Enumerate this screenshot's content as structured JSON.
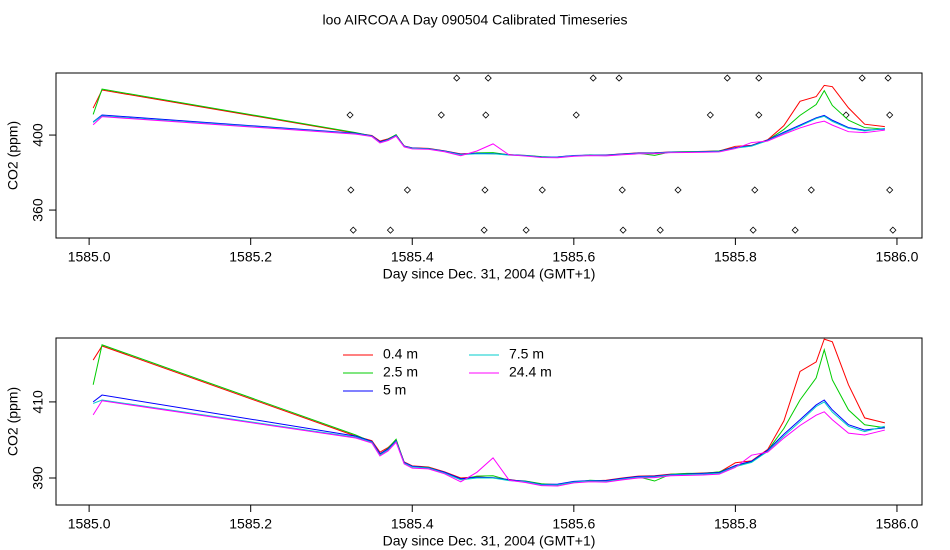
{
  "title": "loo AIRCOA A  Day 090504  Calibrated Timeseries",
  "chart_data": [
    {
      "type": "line",
      "xlabel": "Day since Dec. 31, 2004 (GMT+1)",
      "ylabel": "CO2 (ppm)",
      "xlim": [
        1584.959,
        1586.031
      ],
      "ylim": [
        345.1,
        433.1
      ],
      "xticks": [
        {
          "value": 1585,
          "label": "1585.0"
        },
        1585.2,
        1585.4,
        1585.6,
        1585.8,
        {
          "value": 1586,
          "label": "1586.0"
        }
      ],
      "yticks": [
        360,
        400
      ],
      "x": [
        1585.005,
        1585.016,
        1585.33,
        1585.35,
        1585.36,
        1585.37,
        1585.38,
        1585.39,
        1585.4,
        1585.42,
        1585.44,
        1585.46,
        1585.48,
        1585.5,
        1585.52,
        1585.54,
        1585.56,
        1585.58,
        1585.6,
        1585.62,
        1585.64,
        1585.66,
        1585.68,
        1585.7,
        1585.72,
        1585.74,
        1585.76,
        1585.78,
        1585.8,
        1585.82,
        1585.84,
        1585.86,
        1585.88,
        1585.9,
        1585.91,
        1585.92,
        1585.94,
        1585.96,
        1585.985
      ],
      "series": [
        {
          "color": "#ff0000",
          "values": [
            414.4,
            424,
            401,
            399.8,
            396.8,
            398,
            400,
            394.2,
            393.2,
            392.9,
            391.6,
            390,
            390.3,
            390,
            389.6,
            389,
            388.4,
            388.3,
            389,
            389.2,
            389.4,
            390,
            390.5,
            390.6,
            391,
            391.1,
            391.3,
            391.5,
            394,
            394.5,
            397.5,
            405,
            418,
            420.5,
            426.5,
            425.8,
            414.5,
            405.8,
            404.5
          ]
        },
        {
          "color": "#00cd00",
          "values": [
            411,
            424.5,
            401.3,
            399.5,
            396.2,
            397.8,
            400.2,
            394,
            393,
            392.8,
            391.4,
            389.6,
            390.5,
            390.6,
            389.4,
            389.2,
            388.5,
            388.2,
            388.8,
            389.4,
            389.2,
            389.8,
            390.3,
            389.2,
            391,
            391.2,
            391.2,
            391.6,
            393.2,
            394.2,
            397.2,
            403,
            410.5,
            416.3,
            423.7,
            415.8,
            407.9,
            404,
            403.2
          ]
        },
        {
          "color": "#0000ff",
          "values": [
            407,
            410.7,
            401,
            399.6,
            396.4,
            397.6,
            399.8,
            394.1,
            393.1,
            392.7,
            391.5,
            389.8,
            390.2,
            390.1,
            389.5,
            389.1,
            388.3,
            388.4,
            389.1,
            389.3,
            389.3,
            389.9,
            390.4,
            390.5,
            390.9,
            391,
            391.2,
            391.4,
            393.3,
            394.4,
            397.3,
            401.5,
            405.3,
            409.2,
            410.5,
            407.9,
            404,
            402.6,
            403.2
          ]
        },
        {
          "color": "#00cdcd",
          "values": [
            406.8,
            410.2,
            400.7,
            399.4,
            396,
            397.3,
            399.6,
            393.9,
            392.9,
            392.6,
            391.3,
            389.5,
            390,
            390,
            389.3,
            389,
            388.2,
            388.2,
            388.9,
            389.2,
            389.1,
            389.7,
            390.2,
            390.3,
            390.8,
            390.9,
            391,
            391.2,
            393,
            394.1,
            397,
            401,
            404.8,
            408.8,
            410,
            407.3,
            403.6,
            402.2,
            403.6
          ]
        },
        {
          "color": "#ff00ff",
          "values": [
            405.5,
            409.8,
            400.5,
            399.2,
            395.8,
            397.1,
            399.4,
            393.7,
            392.6,
            392.4,
            391.1,
            389,
            391.5,
            395.3,
            389.4,
            388.8,
            388,
            387.9,
            388.7,
            389,
            388.9,
            389.5,
            390,
            390.1,
            390.6,
            390.7,
            390.8,
            391,
            392.8,
            396,
            396.8,
            400.5,
            403.8,
            406.5,
            407.4,
            405.3,
            401.8,
            401.3,
            402.6
          ]
        }
      ],
      "points": {
        "x": [
          1585.455,
          1585.494,
          1585.624,
          1585.656,
          1585.79,
          1585.829,
          1585.957,
          1585.989,
          1585.323,
          1585.436,
          1585.491,
          1585.603,
          1585.769,
          1585.829,
          1585.937,
          1585.991,
          1585.324,
          1585.394,
          1585.49,
          1585.561,
          1585.66,
          1585.729,
          1585.824,
          1585.894,
          1585.991,
          1585.327,
          1585.373,
          1585.489,
          1585.541,
          1585.661,
          1585.707,
          1585.822,
          1585.874,
          1585.995
        ],
        "y": [
          430.4,
          430.4,
          430.4,
          430.4,
          430.4,
          430.4,
          430.4,
          430.4,
          410.7,
          410.7,
          410.7,
          410.7,
          410.7,
          410.7,
          410.7,
          410.7,
          370.7,
          370.7,
          370.7,
          370.7,
          370.7,
          370.7,
          370.7,
          370.7,
          370.7,
          349.3,
          349.3,
          349.3,
          349.3,
          349.3,
          349.3,
          349.3,
          349.3,
          349.3
        ]
      }
    },
    {
      "type": "line",
      "xlabel": "Day since Dec. 31, 2004 (GMT+1)",
      "ylabel": "CO2 (ppm)",
      "xlim": [
        1584.959,
        1586.031
      ],
      "ylim": [
        382.9,
        426.8
      ],
      "xticks": [
        {
          "value": 1585,
          "label": "1585.0"
        },
        1585.2,
        1585.4,
        1585.6,
        1585.8,
        {
          "value": 1586,
          "label": "1586.0"
        }
      ],
      "yticks": [
        390,
        410
      ],
      "x": [
        1585.005,
        1585.016,
        1585.33,
        1585.35,
        1585.36,
        1585.37,
        1585.38,
        1585.39,
        1585.4,
        1585.42,
        1585.44,
        1585.46,
        1585.48,
        1585.5,
        1585.52,
        1585.54,
        1585.56,
        1585.58,
        1585.6,
        1585.62,
        1585.64,
        1585.66,
        1585.68,
        1585.7,
        1585.72,
        1585.74,
        1585.76,
        1585.78,
        1585.8,
        1585.82,
        1585.84,
        1585.86,
        1585.88,
        1585.9,
        1585.91,
        1585.92,
        1585.94,
        1585.96,
        1585.985
      ],
      "series": [
        {
          "name": "0.4 m",
          "color": "#ff0000",
          "values": [
            421,
            424.7,
            401,
            399.8,
            396.8,
            398,
            400,
            394.2,
            393.2,
            392.9,
            391.6,
            390,
            390.3,
            390,
            389.6,
            389,
            388.4,
            388.3,
            389,
            389.2,
            389.4,
            390,
            390.5,
            390.6,
            391,
            391.1,
            391.3,
            391.5,
            394,
            394.5,
            397.5,
            405,
            418,
            420.5,
            426.5,
            425.8,
            414.5,
            405.8,
            404.5
          ]
        },
        {
          "name": "2.5 m",
          "color": "#00cd00",
          "values": [
            414.5,
            425,
            401.3,
            399.5,
            396.2,
            397.8,
            400.2,
            394,
            393,
            392.8,
            391.4,
            389.6,
            390.5,
            390.6,
            389.4,
            389.2,
            388.5,
            388.2,
            388.8,
            389.4,
            389.2,
            389.8,
            390.3,
            389.2,
            391,
            391.2,
            391.2,
            391.6,
            393.2,
            394.2,
            397.2,
            403,
            410.5,
            416.3,
            423.7,
            415.8,
            407.9,
            404,
            403.2
          ]
        },
        {
          "name": "5 m",
          "color": "#0000ff",
          "values": [
            410,
            411.8,
            401,
            399.6,
            396.4,
            397.6,
            399.8,
            394.1,
            393.1,
            392.7,
            391.5,
            389.8,
            390.2,
            390.1,
            389.5,
            389.1,
            388.3,
            388.4,
            389.1,
            389.3,
            389.3,
            389.9,
            390.4,
            390.5,
            390.9,
            391,
            391.2,
            391.4,
            393.3,
            394.4,
            397.3,
            401.5,
            405.3,
            409.2,
            410.5,
            407.9,
            404,
            402.6,
            403.2
          ]
        },
        {
          "name": "7.5 m",
          "color": "#00cdcd",
          "values": [
            409.6,
            410.5,
            400.7,
            399.4,
            396,
            397.3,
            399.6,
            393.9,
            392.9,
            392.6,
            391.3,
            389.5,
            390,
            390,
            389.3,
            389,
            388.2,
            388.2,
            388.9,
            389.2,
            389.1,
            389.7,
            390.2,
            390.3,
            390.8,
            390.9,
            391,
            391.2,
            393,
            394.1,
            397,
            401,
            404.8,
            408.8,
            410,
            407.3,
            403.6,
            402.2,
            403.6
          ]
        },
        {
          "name": "24.4 m",
          "color": "#ff00ff",
          "values": [
            406.6,
            410.3,
            400.5,
            399.2,
            395.8,
            397.1,
            399.4,
            393.7,
            392.6,
            392.4,
            391.1,
            389,
            391.5,
            395.3,
            389.4,
            388.8,
            388,
            387.9,
            388.7,
            389,
            388.9,
            389.5,
            390,
            390.1,
            390.6,
            390.7,
            390.8,
            391,
            392.8,
            396,
            396.8,
            400.5,
            403.8,
            406.5,
            407.4,
            405.3,
            401.8,
            401.3,
            402.6
          ]
        }
      ]
    }
  ]
}
